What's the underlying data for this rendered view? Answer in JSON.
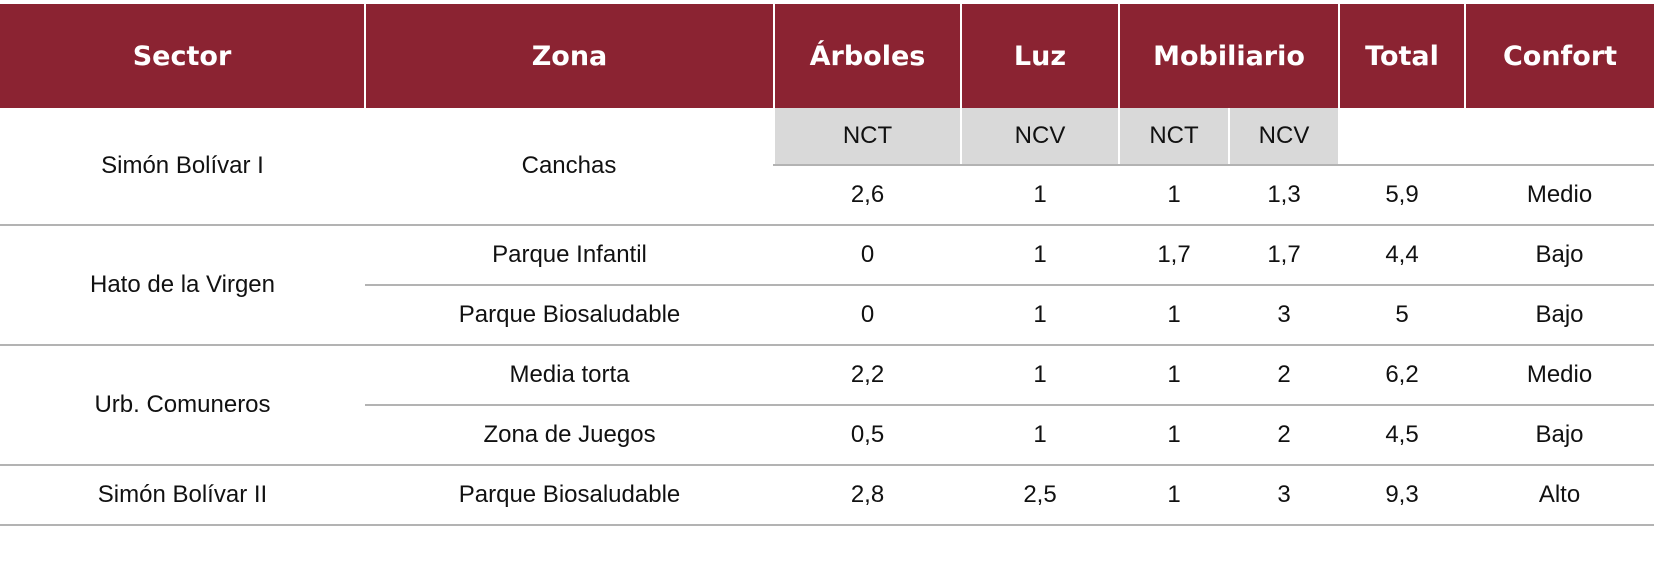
{
  "header": [
    "Sector",
    "Zona",
    "Árboles",
    "Luz",
    "Mobiliario",
    "Total",
    "Confort"
  ],
  "subheaders": [
    "NCT",
    "NCV",
    "NCT",
    "NCV"
  ],
  "sectors": [
    {
      "name": "Simón Bolívar I",
      "zones": [
        {
          "name": "Canchas",
          "cells": [
            "2,6",
            "1",
            "1",
            "1,3",
            "5,9",
            "Medio"
          ]
        }
      ]
    },
    {
      "name": "Hato de la Virgen",
      "zones": [
        {
          "name": "Parque Infantil",
          "cells": [
            "0",
            "1",
            "1,7",
            "1,7",
            "4,4",
            "Bajo"
          ]
        },
        {
          "name": "Parque Biosaludable",
          "cells": [
            "0",
            "1",
            "1",
            "3",
            "5",
            "Bajo"
          ]
        }
      ]
    },
    {
      "name": "Urb. Comuneros",
      "zones": [
        {
          "name": "Media torta",
          "cells": [
            "2,2",
            "1",
            "1",
            "2",
            "6,2",
            "Medio"
          ]
        },
        {
          "name": "Zona de Juegos",
          "cells": [
            "0,5",
            "1",
            "1",
            "2",
            "4,5",
            "Bajo"
          ]
        }
      ]
    },
    {
      "name": "Simón Bolívar II",
      "zones": [
        {
          "name": "Parque Biosaludable",
          "cells": [
            "2,8",
            "2,5",
            "1",
            "3",
            "9,3",
            "Alto"
          ]
        }
      ]
    }
  ]
}
